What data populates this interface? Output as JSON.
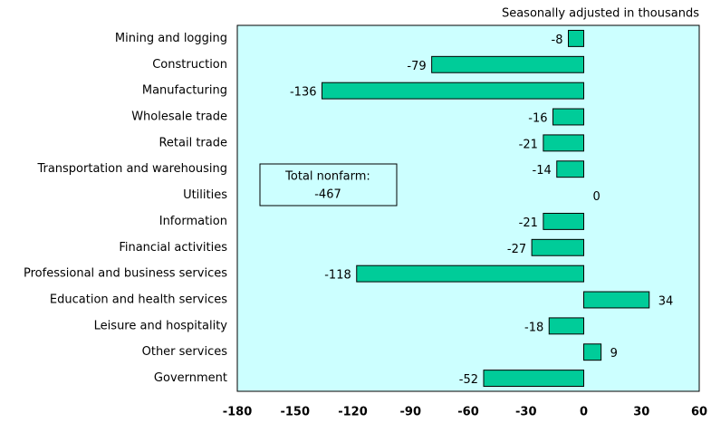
{
  "chart_data": {
    "type": "hbar",
    "subtitle": "Seasonally adjusted in thousands",
    "categories": [
      "Mining and logging",
      "Construction",
      "Manufacturing",
      "Wholesale trade",
      "Retail trade",
      "Transportation and warehousing",
      "Utilities",
      "Information",
      "Financial activities",
      "Professional and business services",
      "Education and health services",
      "Leisure and hospitality",
      "Other services",
      "Government"
    ],
    "values": [
      -8,
      -79,
      -136,
      -16,
      -21,
      -14,
      0,
      -21,
      -27,
      -118,
      34,
      -18,
      9,
      -52
    ],
    "color": "#00cc99",
    "background": "#ccffff",
    "xlim": [
      -180,
      60
    ],
    "xticks": [
      -180,
      -150,
      -120,
      -90,
      -60,
      -30,
      0,
      30,
      60
    ],
    "annotation": [
      "Total nonfarm:",
      "-467"
    ]
  }
}
